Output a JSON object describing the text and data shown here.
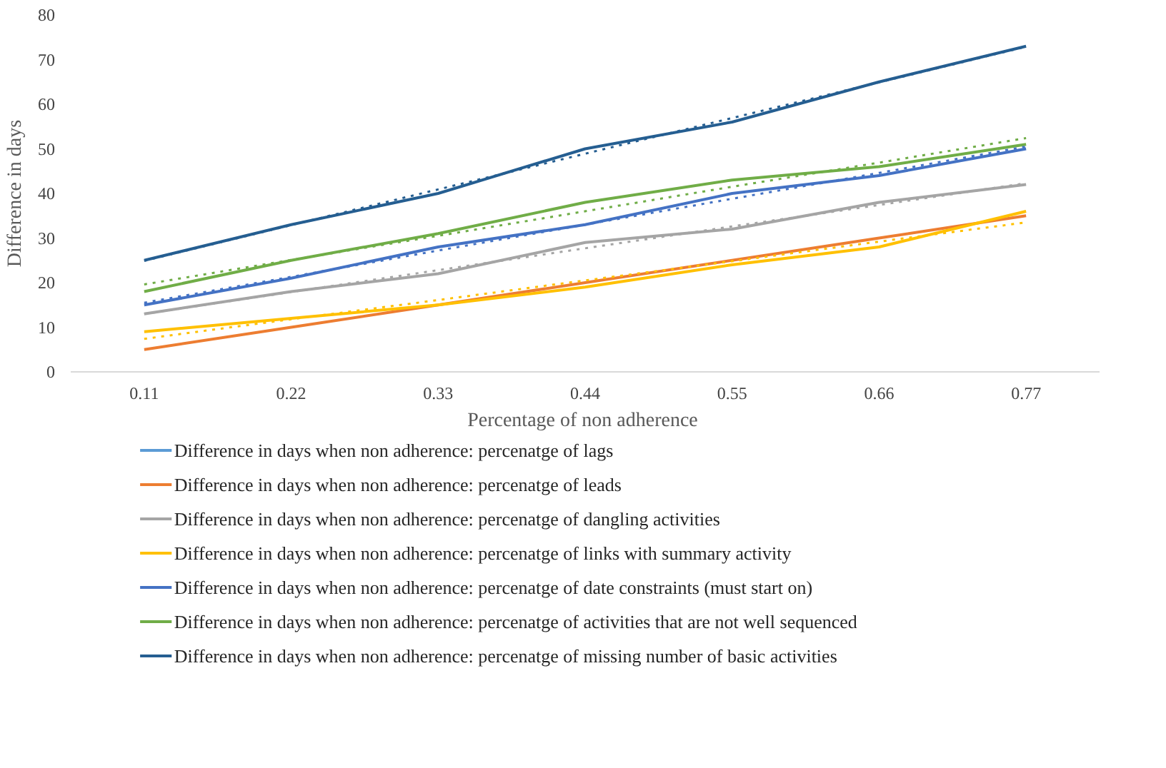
{
  "chart_data": {
    "type": "line",
    "xlabel": "Percentage  of non adherence",
    "ylabel": "Difference in days",
    "x": [
      0.11,
      0.22,
      0.33,
      0.44,
      0.55,
      0.66,
      0.77
    ],
    "xlim": [
      0.055,
      0.825
    ],
    "xticks": [
      {
        "value": 0.11,
        "label": "0.11"
      },
      {
        "value": 0.22,
        "label": "0.22"
      },
      {
        "value": 0.33,
        "label": "0.33"
      },
      {
        "value": 0.44,
        "label": "0.44"
      },
      {
        "value": 0.55,
        "label": "0.55"
      },
      {
        "value": 0.66,
        "label": "0.66"
      },
      {
        "value": 0.77,
        "label": "0.77"
      }
    ],
    "ylim": [
      0,
      80
    ],
    "yticks": [
      0,
      10,
      20,
      30,
      40,
      50,
      60,
      70,
      80
    ],
    "legend": "bottom",
    "series": [
      {
        "name": "Difference in days when non adherence: percenatge of lags",
        "color": "#5b9bd5",
        "values": [
          null,
          null,
          null,
          null,
          null,
          null,
          null
        ]
      },
      {
        "name": "Difference in days when non adherence: percenatge of leads",
        "color": "#ed7d31",
        "values": [
          5,
          10,
          15,
          20,
          25,
          30,
          35
        ]
      },
      {
        "name": "Difference in days when non adherence: percenatge of dangling activities",
        "color": "#a5a5a5",
        "values": [
          13,
          18,
          22,
          29,
          32,
          38,
          42
        ]
      },
      {
        "name": "Difference in days when non adherence: percenatge of links with summary activity",
        "color": "#ffc000",
        "values": [
          9,
          12,
          15,
          19,
          24,
          28,
          36
        ]
      },
      {
        "name": "Difference in days when non adherence: percenatge of date constraints (must start on)",
        "color": "#4472c4",
        "values": [
          15,
          21,
          28,
          33,
          40,
          44,
          50
        ]
      },
      {
        "name": "Difference in days when non adherence: percenatge of activities that are not well sequenced",
        "color": "#70ad47",
        "values": [
          18,
          25,
          31,
          38,
          43,
          46,
          51
        ]
      },
      {
        "name": "Difference in days when non adherence: percenatge of missing number of basic activities",
        "color": "#255e91",
        "values": [
          25,
          33,
          40,
          50,
          56,
          65,
          73
        ]
      },
      {
        "type": "line",
        "color": "#a5a5a5",
        "line_style": "dotted",
        "values": [
          13.0,
          17.9,
          22.8,
          27.7,
          32.6,
          37.4,
          42.3
        ]
      },
      {
        "type": "line",
        "color": "#ffc000",
        "line_style": "dotted",
        "values": [
          7.4,
          11.8,
          16.1,
          20.5,
          24.8,
          29.2,
          33.5
        ]
      },
      {
        "type": "line",
        "color": "#4472c4",
        "line_style": "dotted",
        "values": [
          15.5,
          21.3,
          27.2,
          33.0,
          38.8,
          44.6,
          50.5
        ]
      },
      {
        "type": "line",
        "color": "#70ad47",
        "line_style": "dotted",
        "values": [
          19.6,
          25.1,
          30.5,
          36.0,
          41.5,
          46.9,
          52.4
        ]
      },
      {
        "type": "line",
        "color": "#255e91",
        "line_style": "dotted",
        "values": [
          24.9,
          32.9,
          40.9,
          48.9,
          56.9,
          64.9,
          72.9
        ]
      }
    ]
  }
}
